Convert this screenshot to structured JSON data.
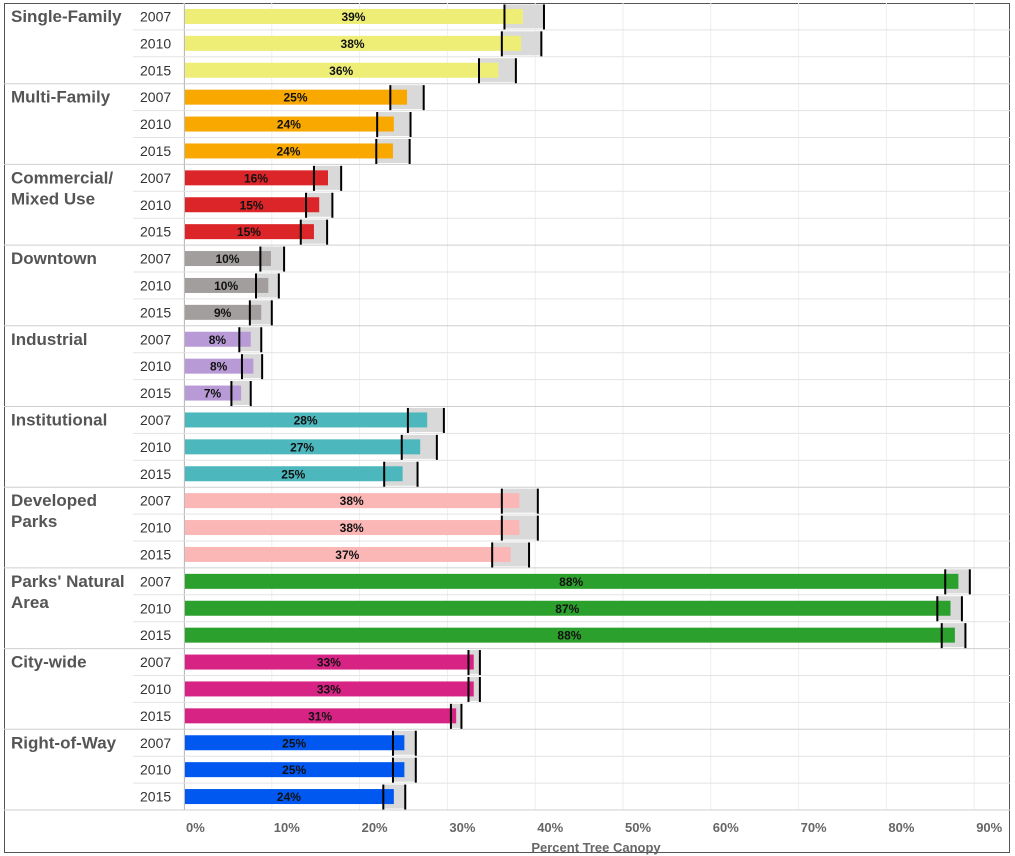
{
  "chart_data": {
    "type": "bar",
    "orientation": "horizontal",
    "variant": "bullet",
    "xlabel": "Percent Tree Canopy",
    "xlim": [
      0,
      94
    ],
    "ticks": [
      0,
      10,
      20,
      30,
      40,
      50,
      60,
      70,
      80,
      90
    ],
    "tick_labels": [
      "0%",
      "10%",
      "20%",
      "30%",
      "40%",
      "50%",
      "60%",
      "70%",
      "80%",
      "90%"
    ],
    "years": [
      "2007",
      "2010",
      "2015"
    ],
    "groups": [
      {
        "name": "Single-Family",
        "label_lines": [
          "Single-Family"
        ],
        "color": "#eeee77",
        "values": [
          38.6,
          38.4,
          35.8
        ],
        "labels": [
          "39%",
          "38%",
          "36%"
        ],
        "band": [
          [
            36.5,
            41.0
          ],
          [
            36.2,
            40.7
          ],
          [
            33.6,
            37.8
          ]
        ]
      },
      {
        "name": "Multi-Family",
        "label_lines": [
          "Multi-Family"
        ],
        "color": "#f9a800",
        "values": [
          25.4,
          23.9,
          23.8
        ],
        "labels": [
          "25%",
          "24%",
          "24%"
        ],
        "band": [
          [
            23.5,
            27.3
          ],
          [
            22.0,
            25.8
          ],
          [
            21.9,
            25.7
          ]
        ]
      },
      {
        "name": "Commercial/ Mixed Use",
        "label_lines": [
          "Commercial/",
          "Mixed Use"
        ],
        "color": "#dc2528",
        "values": [
          16.4,
          15.4,
          14.8
        ],
        "labels": [
          "16%",
          "15%",
          "15%"
        ],
        "band": [
          [
            14.8,
            17.9
          ],
          [
            13.9,
            16.9
          ],
          [
            13.3,
            16.3
          ]
        ]
      },
      {
        "name": "Downtown",
        "label_lines": [
          "Downtown"
        ],
        "color": "#a29e9e",
        "values": [
          9.9,
          9.6,
          8.8
        ],
        "labels": [
          "10%",
          "10%",
          "9%"
        ],
        "band": [
          [
            8.7,
            11.4
          ],
          [
            8.2,
            10.8
          ],
          [
            7.5,
            10.0
          ]
        ]
      },
      {
        "name": "Industrial",
        "label_lines": [
          "Industrial"
        ],
        "color": "#b89ad6",
        "values": [
          7.6,
          7.9,
          6.5
        ],
        "labels": [
          "8%",
          "8%",
          "7%"
        ],
        "band": [
          [
            6.3,
            8.8
          ],
          [
            6.6,
            8.9
          ],
          [
            5.4,
            7.6
          ]
        ]
      },
      {
        "name": "Institutional",
        "label_lines": [
          "Institutional"
        ],
        "color": "#4cb7bd",
        "values": [
          27.7,
          26.9,
          24.9
        ],
        "labels": [
          "28%",
          "27%",
          "25%"
        ],
        "band": [
          [
            25.5,
            29.6
          ],
          [
            24.8,
            28.8
          ],
          [
            22.8,
            26.6
          ]
        ]
      },
      {
        "name": "Developed Parks",
        "label_lines": [
          "Developed",
          "Parks"
        ],
        "color": "#fbb6b6",
        "values": [
          38.2,
          38.2,
          37.2
        ],
        "labels": [
          "38%",
          "38%",
          "37%"
        ],
        "band": [
          [
            36.2,
            40.3
          ],
          [
            36.2,
            40.3
          ],
          [
            35.1,
            39.3
          ]
        ]
      },
      {
        "name": "Parks' Natural Area",
        "label_lines": [
          "Parks' Natural",
          "Area"
        ],
        "color": "#2ca02c",
        "values": [
          88.2,
          87.3,
          87.8
        ],
        "labels": [
          "88%",
          "87%",
          "88%"
        ],
        "band": [
          [
            86.7,
            89.5
          ],
          [
            85.8,
            88.6
          ],
          [
            86.3,
            89.0
          ]
        ]
      },
      {
        "name": "City-wide",
        "label_lines": [
          "City-wide"
        ],
        "color": "#d62384",
        "values": [
          33.0,
          33.0,
          31.0
        ],
        "labels": [
          "33%",
          "33%",
          "31%"
        ],
        "band": [
          [
            32.4,
            33.7
          ],
          [
            32.4,
            33.7
          ],
          [
            30.4,
            31.6
          ]
        ]
      },
      {
        "name": "Right-of-Way",
        "label_lines": [
          "Right-of-Way"
        ],
        "color": "#0058f0",
        "values": [
          25.1,
          25.1,
          23.9
        ],
        "labels": [
          "25%",
          "25%",
          "24%"
        ],
        "band": [
          [
            23.8,
            26.4
          ],
          [
            23.8,
            26.4
          ],
          [
            22.7,
            25.2
          ]
        ]
      }
    ]
  }
}
